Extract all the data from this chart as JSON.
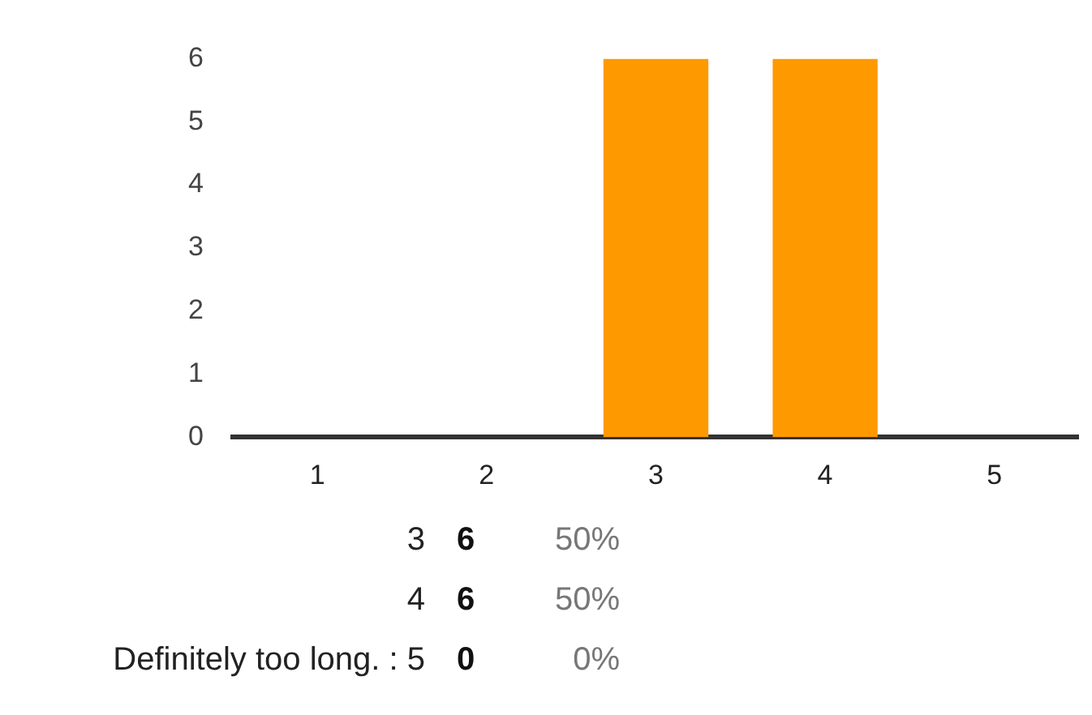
{
  "chart_data": {
    "type": "bar",
    "categories": [
      "1",
      "2",
      "3",
      "4",
      "5"
    ],
    "values": [
      0,
      0,
      6,
      6,
      0
    ],
    "color": "#ff9900",
    "ylim": [
      0,
      6
    ],
    "yticks": [
      0,
      1,
      2,
      3,
      4,
      5,
      6
    ],
    "grid": false,
    "legend": false,
    "annotations": [
      "3 6 50%",
      "4 6 50%",
      "Definitely too long. : 5 0 0%"
    ]
  }
}
